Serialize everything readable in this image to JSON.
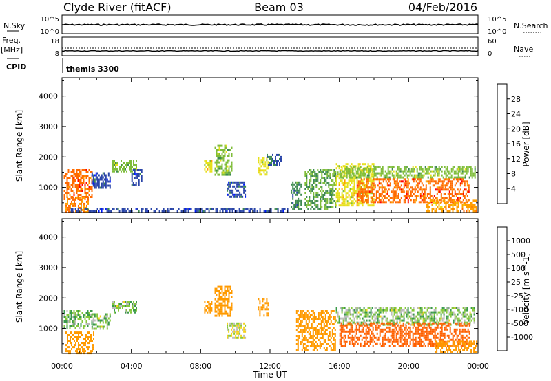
{
  "header": {
    "station": "Clyde River (fitACF)",
    "beam": "Beam 03",
    "date": "04/Feb/2016"
  },
  "top_panels": {
    "nsky_label": "N.Sky",
    "nsearch_label": "N.Search",
    "noise_ticks_left": [
      "10^5",
      "10^0"
    ],
    "noise_ticks_right": [
      "10^5",
      "10^0"
    ],
    "freq_label": "Freq.",
    "freq_unit": "[MHz]",
    "freq_ticks": [
      "18",
      "8"
    ],
    "nave_label": "Nave",
    "nave_ticks": [
      "60",
      "0"
    ],
    "cpid_label": "CPID",
    "cpid_value": "themis 3300"
  },
  "axes": {
    "ylabel": "Slant Range [km]",
    "xlabel": "Time UT",
    "x_ticks": [
      "00:00",
      "04:00",
      "08:00",
      "12:00",
      "16:00",
      "20:00",
      "00:00"
    ],
    "y_ticks": [
      "1000",
      "2000",
      "3000",
      "4000"
    ]
  },
  "colorbars": {
    "power": {
      "label": "Power [dB]",
      "ticks": [
        "4",
        "8",
        "12",
        "16",
        "20",
        "24",
        "28"
      ],
      "colors": [
        "#0019ff",
        "#2a45a8",
        "#3d8a50",
        "#7fbd3a",
        "#e6e01a",
        "#ff9f00",
        "#ff6a00",
        "#ff0000"
      ]
    },
    "velocity": {
      "label": "Velocity [m s^-1]",
      "ticks": [
        "1000",
        "500",
        "100",
        "25",
        "-25",
        "-100",
        "-500",
        "-1000"
      ],
      "colors": [
        "#1a2fd6",
        "#2b6da8",
        "#3a9a4a",
        "#86c83a",
        "#bbbbbb",
        "#f5d21a",
        "#ff9a00",
        "#ff6000",
        "#ff0000"
      ]
    }
  },
  "chart_data": [
    {
      "type": "heatmap",
      "title": "Power [dB]",
      "xlabel": "Time UT",
      "ylabel": "Slant Range [km]",
      "xlim": [
        0,
        24
      ],
      "ylim": [
        180,
        4600
      ],
      "x_unit": "hours UT",
      "regions": [
        {
          "t0": 0.1,
          "t1": 1.7,
          "r0": 600,
          "r1": 1600,
          "v": 26
        },
        {
          "t0": 0.2,
          "t1": 1.5,
          "r0": 200,
          "r1": 700,
          "v": 24
        },
        {
          "t0": 1.7,
          "t1": 2.8,
          "r0": 1000,
          "r1": 1500,
          "v": 6
        },
        {
          "t0": 2.9,
          "t1": 4.3,
          "r0": 1500,
          "r1": 1900,
          "v": 14
        },
        {
          "t0": 4.0,
          "t1": 4.6,
          "r0": 1100,
          "r1": 1600,
          "v": 6
        },
        {
          "t0": 8.2,
          "t1": 8.6,
          "r0": 1500,
          "r1": 1900,
          "v": 18
        },
        {
          "t0": 8.8,
          "t1": 9.8,
          "r0": 1400,
          "r1": 2400,
          "v": 14
        },
        {
          "t0": 9.5,
          "t1": 10.6,
          "r0": 700,
          "r1": 1200,
          "v": 6
        },
        {
          "t0": 11.3,
          "t1": 11.9,
          "r0": 1400,
          "r1": 2000,
          "v": 18
        },
        {
          "t0": 11.8,
          "t1": 12.6,
          "r0": 1700,
          "r1": 2100,
          "v": 8
        },
        {
          "t0": 13.2,
          "t1": 13.8,
          "r0": 300,
          "r1": 1200,
          "v": 10
        },
        {
          "t0": 14.0,
          "t1": 15.8,
          "r0": 300,
          "r1": 1600,
          "v": 12
        },
        {
          "t0": 15.8,
          "t1": 18.0,
          "r0": 400,
          "r1": 1800,
          "v": 18
        },
        {
          "t0": 16.0,
          "t1": 23.8,
          "r0": 1300,
          "r1": 1700,
          "v": 14
        },
        {
          "t0": 17.0,
          "t1": 23.5,
          "r0": 500,
          "r1": 1300,
          "v": 26
        },
        {
          "t0": 21.0,
          "t1": 23.9,
          "r0": 200,
          "r1": 600,
          "v": 22
        },
        {
          "t0": 0.5,
          "t1": 13.0,
          "r0": 200,
          "r1": 320,
          "v": 6
        }
      ]
    },
    {
      "type": "heatmap",
      "title": "Velocity [m s^-1]",
      "xlabel": "Time UT",
      "ylabel": "Slant Range [km]",
      "xlim": [
        0,
        24
      ],
      "ylim": [
        180,
        4600
      ],
      "x_unit": "hours UT",
      "regions": [
        {
          "t0": 0.1,
          "t1": 1.7,
          "r0": 1000,
          "r1": 1600,
          "v": 80
        },
        {
          "t0": 0.2,
          "t1": 1.8,
          "r0": 200,
          "r1": 900,
          "v": -300
        },
        {
          "t0": 1.7,
          "t1": 2.8,
          "r0": 1000,
          "r1": 1500,
          "v": 60
        },
        {
          "t0": 2.9,
          "t1": 4.3,
          "r0": 1500,
          "r1": 1900,
          "v": 60
        },
        {
          "t0": 8.2,
          "t1": 8.6,
          "r0": 1500,
          "r1": 1900,
          "v": -400
        },
        {
          "t0": 8.8,
          "t1": 9.8,
          "r0": 1400,
          "r1": 2400,
          "v": -400
        },
        {
          "t0": 9.5,
          "t1": 10.6,
          "r0": 700,
          "r1": 1200,
          "v": 0
        },
        {
          "t0": 11.3,
          "t1": 11.9,
          "r0": 1400,
          "r1": 2000,
          "v": -400
        },
        {
          "t0": 13.5,
          "t1": 15.8,
          "r0": 300,
          "r1": 1600,
          "v": -200
        },
        {
          "t0": 15.8,
          "t1": 23.8,
          "r0": 1100,
          "r1": 1700,
          "v": 60
        },
        {
          "t0": 16.0,
          "t1": 23.5,
          "r0": 400,
          "r1": 1200,
          "v": -600
        },
        {
          "t0": 21.5,
          "t1": 23.9,
          "r0": 200,
          "r1": 600,
          "v": -300
        }
      ]
    }
  ]
}
